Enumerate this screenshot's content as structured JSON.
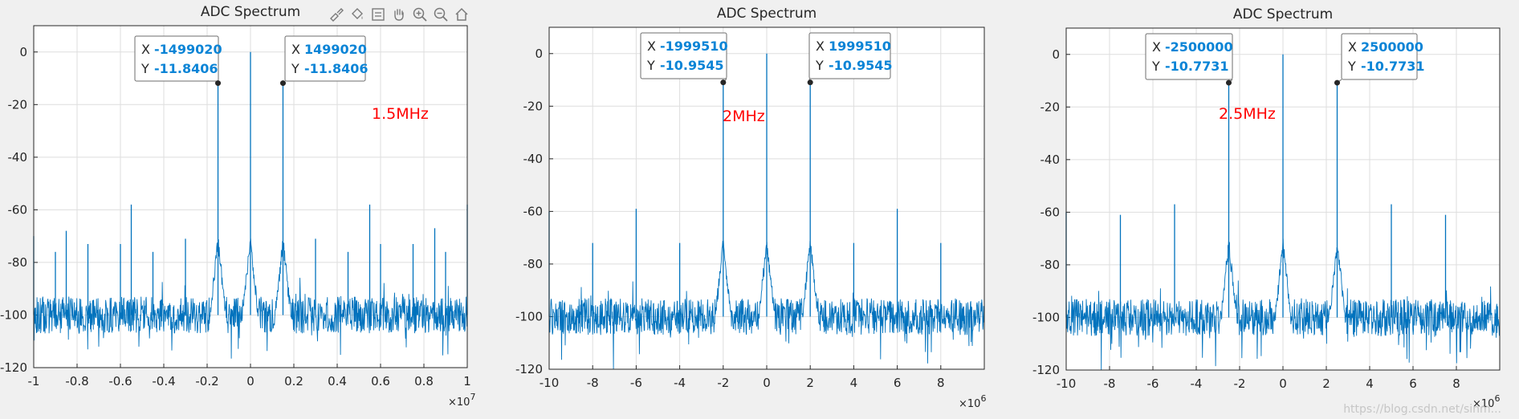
{
  "toolbar": {
    "icons": [
      "brush-icon",
      "paint-bucket-icon",
      "data-cursor-icon",
      "pan-hand-icon",
      "zoom-in-icon",
      "zoom-out-icon",
      "home-icon"
    ]
  },
  "colors": {
    "line": "#0072bd",
    "annotation": "#ff0000",
    "datatip_value": "#0a84d6"
  },
  "watermark": "https://blog.csdn.net/sinm...",
  "chart_data": [
    {
      "type": "line",
      "title": "ADC Spectrum",
      "xlim": [
        -10000000,
        10000000
      ],
      "ylim": [
        -120,
        10
      ],
      "x_ticks": [
        -1,
        -0.8,
        -0.6,
        -0.4,
        -0.2,
        0,
        0.2,
        0.4,
        0.6,
        0.8,
        1
      ],
      "x_exponent": "7",
      "y_ticks": [
        0,
        -20,
        -40,
        -60,
        -80,
        -100,
        -120
      ],
      "grid": true,
      "annotation": "1.5MHz",
      "noise_floor": -100,
      "datatips": [
        {
          "x_label": "X",
          "x": "-1499020",
          "y_label": "Y",
          "y": "-11.8406"
        },
        {
          "x_label": "X",
          "x": "1499020",
          "y_label": "Y",
          "y": "-11.8406"
        }
      ],
      "peaks": [
        {
          "x": 0,
          "y": 0
        },
        {
          "x": -1499020,
          "y": -11.84
        },
        {
          "x": 1499020,
          "y": -11.84
        },
        {
          "x": 10000000,
          "y": -58
        },
        {
          "x": 5500000,
          "y": -58
        },
        {
          "x": -5500000,
          "y": -58
        },
        {
          "x": -10000000,
          "y": -70
        },
        {
          "x": 8500000,
          "y": -67
        },
        {
          "x": -8500000,
          "y": -68
        },
        {
          "x": 3000000,
          "y": -71
        },
        {
          "x": -3000000,
          "y": -71
        },
        {
          "x": 4500000,
          "y": -76
        },
        {
          "x": -4500000,
          "y": -76
        },
        {
          "x": 6000000,
          "y": -73
        },
        {
          "x": -6000000,
          "y": -73
        },
        {
          "x": 7500000,
          "y": -73
        },
        {
          "x": -7500000,
          "y": -73
        },
        {
          "x": 9000000,
          "y": -76
        },
        {
          "x": -9000000,
          "y": -76
        }
      ]
    },
    {
      "type": "line",
      "title": "ADC Spectrum",
      "xlim": [
        -10000000,
        10000000
      ],
      "ylim": [
        -120,
        10
      ],
      "x_ticks": [
        -10,
        -8,
        -6,
        -4,
        -2,
        0,
        2,
        4,
        6,
        8
      ],
      "x_exponent": "6",
      "y_ticks": [
        0,
        -20,
        -40,
        -60,
        -80,
        -100,
        -120
      ],
      "grid": true,
      "annotation": "2MHz",
      "noise_floor": -100,
      "datatips": [
        {
          "x_label": "X",
          "x": "-1999510",
          "y_label": "Y",
          "y": "-10.9545"
        },
        {
          "x_label": "X",
          "x": "1999510",
          "y_label": "Y",
          "y": "-10.9545"
        }
      ],
      "peaks": [
        {
          "x": 0,
          "y": 0
        },
        {
          "x": -1999510,
          "y": -10.95
        },
        {
          "x": 1999510,
          "y": -10.95
        },
        {
          "x": 6000000,
          "y": -59
        },
        {
          "x": -6000000,
          "y": -59
        },
        {
          "x": 4000000,
          "y": -72
        },
        {
          "x": -4000000,
          "y": -72
        },
        {
          "x": 8000000,
          "y": -72
        },
        {
          "x": -8000000,
          "y": -72
        },
        {
          "x": -10000000,
          "y": -60
        }
      ]
    },
    {
      "type": "line",
      "title": "ADC Spectrum",
      "xlim": [
        -10000000,
        10000000
      ],
      "ylim": [
        -120,
        10
      ],
      "x_ticks": [
        -10,
        -8,
        -6,
        -4,
        -2,
        0,
        2,
        4,
        6,
        8
      ],
      "x_exponent": "6",
      "y_ticks": [
        0,
        -20,
        -40,
        -60,
        -80,
        -100,
        -120
      ],
      "grid": true,
      "annotation": "2.5MHz",
      "noise_floor": -100,
      "datatips": [
        {
          "x_label": "X",
          "x": "-2500000",
          "y_label": "Y",
          "y": "-10.7731"
        },
        {
          "x_label": "X",
          "x": "2500000",
          "y_label": "Y",
          "y": "-10.7731"
        }
      ],
      "peaks": [
        {
          "x": 0,
          "y": 0
        },
        {
          "x": -2500000,
          "y": -10.77
        },
        {
          "x": 2500000,
          "y": -10.77
        },
        {
          "x": 5000000,
          "y": -57
        },
        {
          "x": -5000000,
          "y": -57
        },
        {
          "x": 7500000,
          "y": -61
        },
        {
          "x": -7500000,
          "y": -61
        },
        {
          "x": -10000000,
          "y": -60
        }
      ]
    }
  ]
}
